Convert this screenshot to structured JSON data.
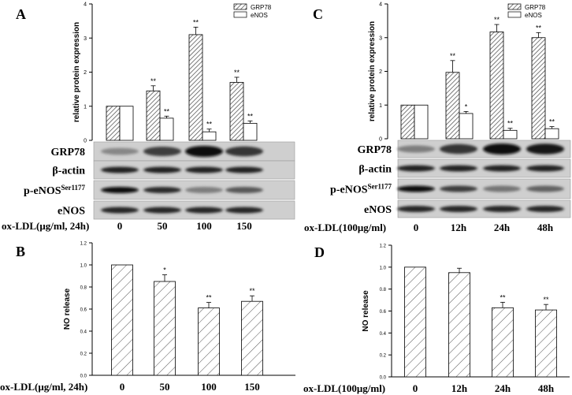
{
  "colors": {
    "background": "#ffffff",
    "bar_edge": "#000000",
    "hatch": "#333333",
    "blot_dark": "#1a1a1a",
    "blot_bg": "#cfcfcf"
  },
  "panels": {
    "A": {
      "letter": "A",
      "ylabel": "relative protein expression",
      "ylim": [
        0,
        4
      ],
      "yticks": [
        "0",
        "1",
        "2",
        "3",
        "4"
      ],
      "legend": [
        "GRP78",
        "eNOS"
      ],
      "significance": [
        [
          "",
          ""
        ],
        [
          "**",
          "**"
        ],
        [
          "**",
          "**"
        ],
        [
          "**",
          "**"
        ]
      ]
    },
    "B": {
      "letter": "B",
      "ylabel": "NO release",
      "ylim": [
        0,
        1.2
      ],
      "yticks": [
        "0.0",
        "0.2",
        "0.4",
        "0.6",
        "0.8",
        "1.0",
        "1.2"
      ],
      "significance": [
        "",
        "*",
        "**",
        "**"
      ]
    },
    "C": {
      "letter": "C",
      "ylabel": "relative protein expression",
      "ylim": [
        0,
        4
      ],
      "yticks": [
        "0",
        "1",
        "2",
        "3",
        "4"
      ],
      "legend": [
        "GRP78",
        "eNOS"
      ],
      "significance": [
        [
          "",
          ""
        ],
        [
          "**",
          "*"
        ],
        [
          "**",
          "**"
        ],
        [
          "**",
          "**"
        ]
      ]
    },
    "D": {
      "letter": "D",
      "ylabel": "NO release",
      "ylim": [
        0,
        1.2
      ],
      "yticks": [
        "0.0",
        "0.2",
        "0.4",
        "0.6",
        "0.8",
        "1.0",
        "1.2"
      ],
      "significance": [
        "",
        "",
        "**",
        "**"
      ]
    }
  },
  "blots": {
    "left": {
      "rows": [
        "GRP78",
        "β-actin",
        "p-eNOS",
        "eNOS"
      ],
      "superscript": "Ser1177",
      "condition_label": "ox-LDL(μg/ml, 24h)",
      "conditions": [
        "0",
        "50",
        "100",
        "150"
      ],
      "grp78_band_intensity": [
        0.35,
        0.75,
        1.0,
        0.8
      ],
      "peNOS_band_intensity": [
        1.0,
        0.85,
        0.4,
        0.6
      ]
    },
    "right": {
      "rows": [
        "GRP78",
        "β-actin",
        "p-eNOS",
        "eNOS"
      ],
      "superscript": "Ser1177",
      "condition_label": "ox-LDL(100μg/ml)",
      "conditions": [
        "0",
        "12h",
        "24h",
        "48h"
      ],
      "grp78_band_intensity": [
        0.4,
        0.8,
        1.0,
        0.95
      ],
      "peNOS_band_intensity": [
        1.0,
        0.75,
        0.45,
        0.55
      ]
    }
  },
  "bottom_labels": {
    "B": {
      "condition_label": "ox-LDL(μg/ml, 24h)",
      "conditions": [
        "0",
        "50",
        "100",
        "150"
      ]
    },
    "D": {
      "condition_label": "ox-LDL(100μg/ml)",
      "conditions": [
        "0",
        "12h",
        "24h",
        "48h"
      ]
    }
  },
  "chart_data": [
    {
      "panel": "A",
      "type": "bar",
      "categories": [
        "0",
        "50",
        "100",
        "150"
      ],
      "series": [
        {
          "name": "GRP78",
          "values": [
            1.0,
            1.45,
            3.1,
            1.7
          ],
          "errors": [
            0,
            0.15,
            0.22,
            0.15
          ]
        },
        {
          "name": "eNOS",
          "values": [
            1.0,
            0.65,
            0.25,
            0.5
          ],
          "errors": [
            0,
            0.06,
            0.08,
            0.07
          ]
        }
      ],
      "ylabel": "relative protein expression",
      "ylim": [
        0,
        4
      ],
      "legend": "top-right"
    },
    {
      "panel": "B",
      "type": "bar",
      "categories": [
        "0",
        "50",
        "100",
        "150"
      ],
      "series": [
        {
          "values": [
            1.0,
            0.85,
            0.61,
            0.67
          ],
          "errors": [
            0,
            0.06,
            0.05,
            0.05
          ]
        }
      ],
      "ylabel": "NO release",
      "xlabel": "ox-LDL(μg/ml, 24h)",
      "ylim": [
        0,
        1.2
      ]
    },
    {
      "panel": "C",
      "type": "bar",
      "categories": [
        "0",
        "12h",
        "24h",
        "48h"
      ],
      "series": [
        {
          "name": "GRP78",
          "values": [
            1.0,
            1.97,
            3.17,
            3.0
          ],
          "errors": [
            0,
            0.35,
            0.22,
            0.15
          ]
        },
        {
          "name": "eNOS",
          "values": [
            1.0,
            0.75,
            0.25,
            0.3
          ],
          "errors": [
            0,
            0.06,
            0.06,
            0.06
          ]
        }
      ],
      "ylabel": "relative protein expression",
      "ylim": [
        0,
        4
      ],
      "legend": "top-right"
    },
    {
      "panel": "D",
      "type": "bar",
      "categories": [
        "0",
        "12h",
        "24h",
        "48h"
      ],
      "series": [
        {
          "values": [
            1.0,
            0.95,
            0.63,
            0.61
          ],
          "errors": [
            0,
            0.04,
            0.05,
            0.05
          ]
        }
      ],
      "ylabel": "NO release",
      "xlabel": "ox-LDL(100μg/ml)",
      "ylim": [
        0,
        1.2
      ]
    }
  ]
}
